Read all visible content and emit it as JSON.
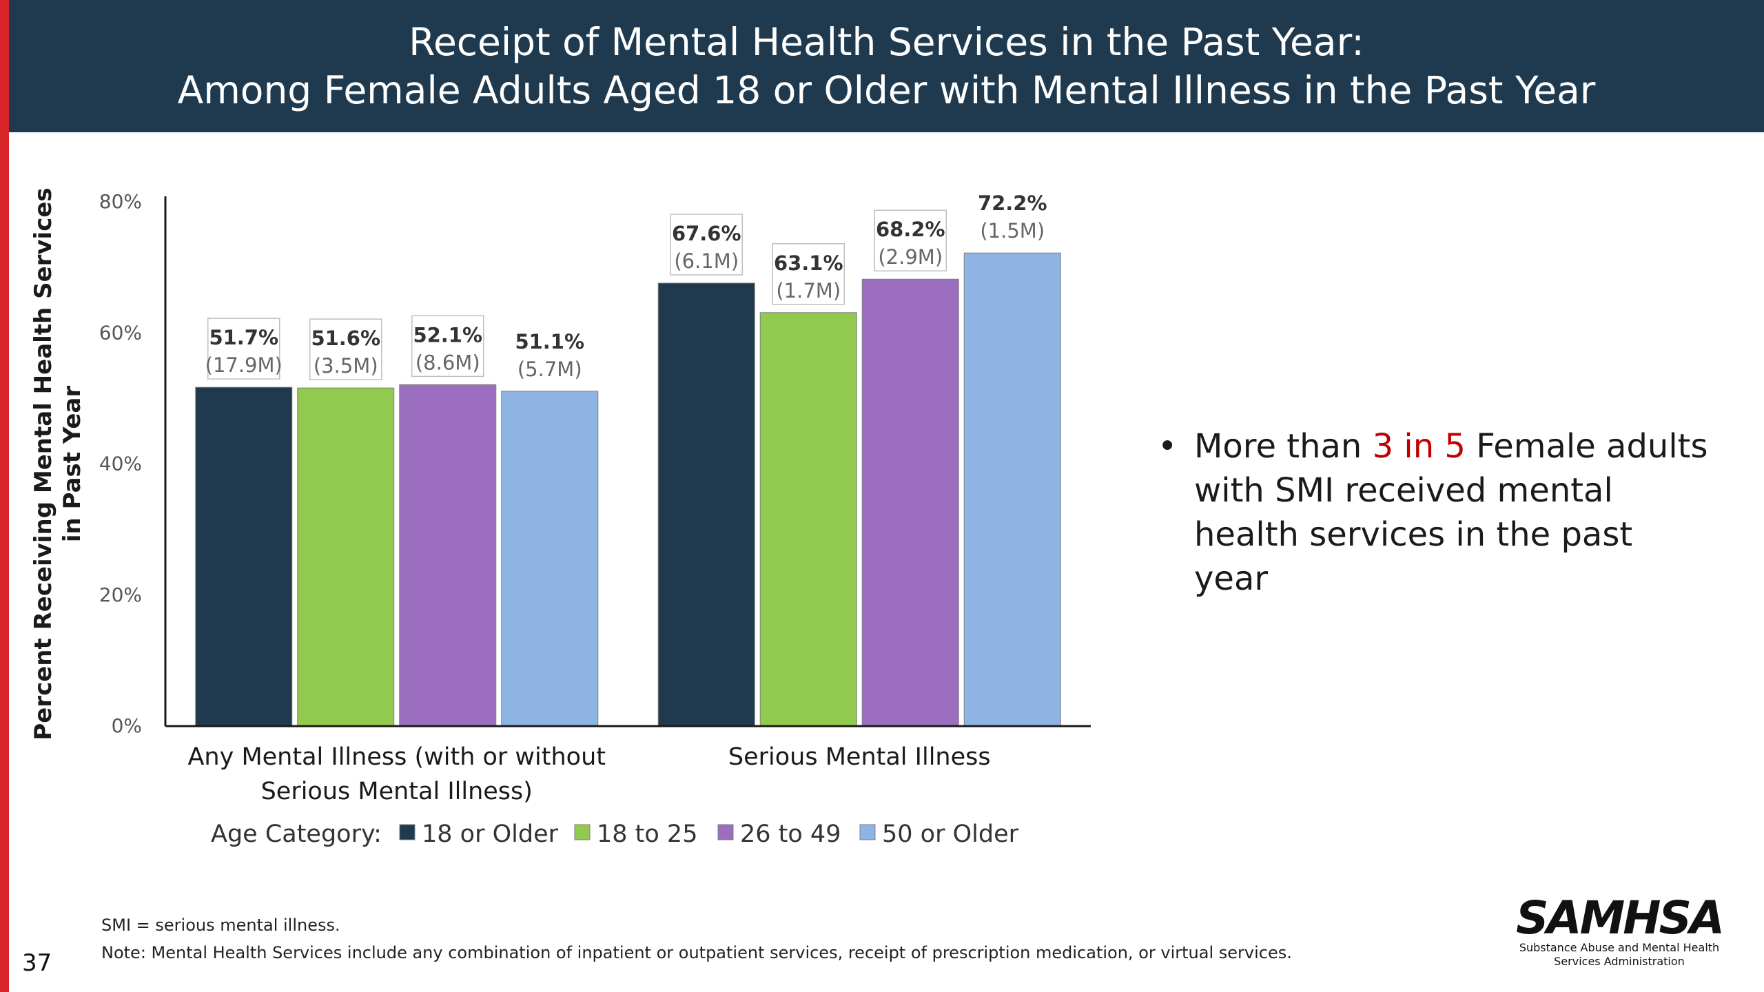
{
  "header": {
    "title_line1": "Receipt of Mental Health Services in the Past Year:",
    "title_line2": "Among Female Adults Aged 18 or Older with Mental Illness in the Past Year"
  },
  "bullet": {
    "prefix": "More than ",
    "highlight": "3 in 5",
    "suffix": " Female adults with SMI received mental health services in the past year"
  },
  "footer": {
    "note1": "SMI = serious mental illness.",
    "note2": "Note: Mental Health Services include any combination of inpatient or outpatient services, receipt of prescription medication, or virtual services.",
    "page_number": "37"
  },
  "logo": {
    "wordmark": "SAMHSA",
    "subtitle_line1": "Substance Abuse and Mental Health",
    "subtitle_line2": "Services Administration"
  },
  "colors": {
    "header_bg": "#1f3a4e",
    "accent_bar": "#d9262b",
    "highlight": "#c00000"
  },
  "chart_data": {
    "type": "bar",
    "title": "",
    "xlabel": "",
    "ylabel": "Percent Receiving Mental Health Services in Past Year",
    "ylabel_lines": [
      "Percent Receiving Mental Health Services",
      "in Past Year"
    ],
    "ylim": [
      0,
      80
    ],
    "yticks": [
      0,
      20,
      40,
      60,
      80
    ],
    "ytick_labels": [
      "0%",
      "20%",
      "40%",
      "60%",
      "80%"
    ],
    "grid": false,
    "legend": {
      "title": "Age Category:",
      "placement": "bottom"
    },
    "categories": [
      {
        "lines": [
          "Any Mental Illness (with or without",
          "Serious Mental Illness)"
        ]
      },
      {
        "lines": [
          "Serious Mental Illness"
        ]
      }
    ],
    "series": [
      {
        "name": "18 or Older",
        "color": "#1f3a4e",
        "values": [
          51.7,
          67.6
        ],
        "value_labels": [
          "51.7%",
          "67.6%"
        ],
        "count_labels": [
          "(17.9M)",
          "(6.1M)"
        ],
        "boxed": [
          true,
          true
        ]
      },
      {
        "name": "18 to 25",
        "color": "#92c94f",
        "values": [
          51.6,
          63.1
        ],
        "value_labels": [
          "51.6%",
          "63.1%"
        ],
        "count_labels": [
          "(3.5M)",
          "(1.7M)"
        ],
        "boxed": [
          true,
          true
        ]
      },
      {
        "name": "26 to 49",
        "color": "#9b6ebf",
        "values": [
          52.1,
          68.2
        ],
        "value_labels": [
          "52.1%",
          "68.2%"
        ],
        "count_labels": [
          "(8.6M)",
          "(2.9M)"
        ],
        "boxed": [
          true,
          true
        ]
      },
      {
        "name": "50 or Older",
        "color": "#8eb4e3",
        "values": [
          51.1,
          72.2
        ],
        "value_labels": [
          "51.1%",
          "72.2%"
        ],
        "count_labels": [
          "(5.7M)",
          "(1.5M)"
        ],
        "boxed": [
          false,
          false
        ]
      }
    ]
  }
}
